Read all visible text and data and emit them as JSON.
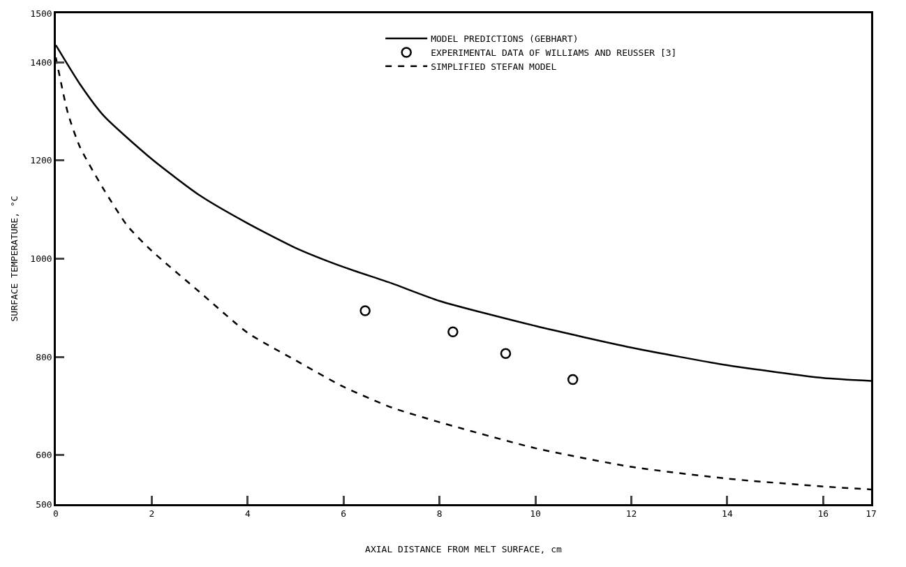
{
  "chart_data": {
    "type": "line",
    "xlabel": "AXIAL DISTANCE FROM MELT SURFACE, cm",
    "ylabel": "SURFACE TEMPERATURE, °C",
    "xlim": [
      0,
      17
    ],
    "xticks": [
      0,
      2,
      4,
      6,
      8,
      10,
      12,
      14,
      16,
      17
    ],
    "ylim": [
      500,
      1500
    ],
    "yticks": [
      500,
      600,
      800,
      1000,
      1200,
      1400,
      1500
    ],
    "grid": false,
    "legend": "top right",
    "series": [
      {
        "name": "MODEL PREDICTIONS (GEBHART)",
        "color": "#000000",
        "line_style": "solid",
        "x": [
          0,
          0.5,
          1,
          2,
          3,
          4,
          5,
          6,
          7,
          8,
          10,
          12,
          14,
          16,
          17
        ],
        "values": [
          1435,
          1356,
          1291,
          1203,
          1129,
          1072,
          1022,
          983,
          950,
          914,
          863,
          819,
          783,
          757,
          751
        ]
      },
      {
        "name": "EXPERIMENTAL DATA OF WILLIAMS AND REUSSER [3]",
        "type": "scatter",
        "marker": "circle",
        "color": "#000000",
        "x": [
          6.45,
          8.28,
          9.38,
          10.78
        ],
        "values": [
          894,
          851,
          807,
          754
        ]
      },
      {
        "name": "SIMPLIFIED STEFAN MODEL",
        "color": "#000000",
        "line_style": "dashed",
        "x": [
          0,
          0.25,
          0.5,
          1,
          1.5,
          2,
          3,
          4,
          5,
          6,
          7,
          8,
          10,
          12,
          14,
          16,
          17
        ],
        "values": [
          1410,
          1297,
          1228,
          1141,
          1066,
          1016,
          932,
          849,
          793,
          739,
          697,
          667,
          614,
          576,
          552,
          536,
          530
        ]
      }
    ]
  }
}
